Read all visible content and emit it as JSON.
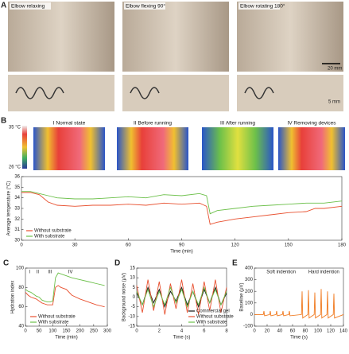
{
  "panels": {
    "a": {
      "label": "A",
      "photos": [
        "Elbow relaxing",
        "Elbow flexing 90°",
        "Elbow rotating 180°"
      ],
      "scale_bars": [
        "20 mm",
        "5 mm"
      ]
    },
    "b": {
      "label": "B",
      "thermal": [
        "I Normal state",
        "II Before running",
        "III After running",
        "IV Removing devices"
      ],
      "colorbar": [
        "35 °C",
        "26 °C"
      ]
    }
  },
  "chart_data": [
    {
      "type": "line",
      "xlabel": "Time (min)",
      "ylabel": "Average temperature (°C)",
      "x": [
        0,
        5,
        10,
        15,
        20,
        30,
        40,
        50,
        60,
        70,
        80,
        90,
        100,
        104,
        106,
        110,
        120,
        130,
        140,
        150,
        160,
        165,
        170,
        180
      ],
      "series": [
        {
          "name": "Without substrate",
          "color": "#e8502f",
          "values": [
            34.5,
            34.5,
            34.3,
            33.6,
            33.3,
            33.2,
            33.3,
            33.3,
            33.4,
            33.3,
            33.5,
            33.4,
            33.5,
            33.2,
            31.5,
            31.7,
            32.0,
            32.2,
            32.4,
            32.6,
            32.7,
            33.0,
            33.0,
            33.2
          ]
        },
        {
          "name": "With substrate",
          "color": "#6cc04a",
          "values": [
            34.6,
            34.6,
            34.4,
            34.2,
            34.0,
            33.9,
            33.9,
            34.0,
            34.1,
            34.0,
            34.3,
            34.2,
            34.4,
            34.2,
            32.5,
            32.8,
            33.0,
            33.2,
            33.3,
            33.4,
            33.5,
            33.5,
            33.5,
            33.7
          ]
        }
      ],
      "xlim": [
        0,
        180
      ],
      "ylim": [
        30,
        36
      ],
      "xticks": [
        0,
        30,
        60,
        90,
        120,
        150,
        180
      ],
      "yticks": [
        30,
        31,
        32,
        33,
        34,
        35,
        36
      ],
      "legend": "lower left"
    },
    {
      "type": "line",
      "panel_label": "C",
      "xlabel": "Time (min)",
      "ylabel": "Hydration index",
      "x": [
        0,
        10,
        20,
        30,
        40,
        50,
        60,
        70,
        80,
        90,
        100,
        110,
        120,
        130,
        150,
        170,
        200,
        230,
        260,
        290
      ],
      "series": [
        {
          "name": "Without substrate",
          "color": "#e8502f",
          "values": [
            75,
            72,
            70,
            69,
            68,
            66,
            64,
            63,
            62,
            62,
            62,
            80,
            82,
            80,
            78,
            72,
            68,
            65,
            62,
            60
          ]
        },
        {
          "name": "With substrate",
          "color": "#6cc04a",
          "values": [
            78,
            76,
            75,
            73,
            71,
            70,
            67,
            66,
            65,
            65,
            66,
            90,
            95,
            94,
            92,
            90,
            88,
            86,
            84,
            82
          ]
        }
      ],
      "annotations": [
        "I",
        "II",
        "III",
        "IV"
      ],
      "xlim": [
        0,
        300
      ],
      "ylim": [
        40,
        100
      ],
      "xticks": [
        0,
        50,
        100,
        150,
        200,
        250,
        300
      ],
      "yticks": [
        40,
        60,
        80,
        100
      ],
      "legend": "lower left"
    },
    {
      "type": "line",
      "panel_label": "D",
      "xlabel": "Time (s)",
      "ylabel": "Background noise (μV)",
      "x": [
        0,
        0.5,
        1,
        1.5,
        2,
        2.5,
        3,
        3.5,
        4,
        4.5,
        5,
        5.5,
        6,
        6.5,
        7,
        7.5,
        8
      ],
      "series": [
        {
          "name": "Commercial gel",
          "color": "#111111",
          "values": [
            2,
            -4,
            5,
            -3,
            4,
            -5,
            3,
            -2,
            5,
            -4,
            3,
            -5,
            4,
            -3,
            5,
            -4,
            2
          ]
        },
        {
          "name": "Without substrate",
          "color": "#e8502f",
          "values": [
            6,
            -8,
            9,
            -7,
            8,
            -9,
            7,
            -6,
            9,
            -8,
            7,
            -9,
            8,
            -7,
            9,
            -8,
            5
          ]
        },
        {
          "name": "With substrate",
          "color": "#6cc04a",
          "values": [
            3,
            -4,
            4,
            -5,
            3,
            -4,
            5,
            -3,
            4,
            -5,
            3,
            -4,
            5,
            -3,
            4,
            -4,
            3
          ]
        }
      ],
      "xlim": [
        0,
        8
      ],
      "ylim": [
        -15,
        15
      ],
      "xticks": [
        0,
        2,
        4,
        6,
        8
      ],
      "yticks": [
        -15,
        -10,
        -5,
        0,
        5,
        10,
        15
      ],
      "legend": "lower right"
    },
    {
      "type": "line",
      "panel_label": "E",
      "xlabel": "Time (s)",
      "ylabel": "Baseline (μV)",
      "x": [
        0,
        14,
        15,
        16,
        24,
        25,
        26,
        34,
        35,
        36,
        44,
        45,
        46,
        54,
        55,
        56,
        74,
        75,
        76,
        84,
        85,
        86,
        94,
        95,
        96,
        104,
        105,
        106,
        114,
        115,
        116,
        124,
        125,
        126,
        140
      ],
      "values": [
        0,
        0,
        30,
        -10,
        0,
        30,
        -10,
        0,
        30,
        -10,
        0,
        30,
        -10,
        0,
        30,
        -10,
        0,
        200,
        -30,
        0,
        210,
        -30,
        0,
        190,
        -30,
        0,
        220,
        -30,
        0,
        200,
        -30,
        0,
        180,
        -30,
        0
      ],
      "color": "#f07a20",
      "annotations": [
        "Soft indention",
        "Hard indention"
      ],
      "xlim": [
        0,
        140
      ],
      "ylim": [
        -100,
        400
      ],
      "xticks": [
        0,
        20,
        40,
        60,
        80,
        100,
        120,
        140
      ],
      "yticks": [
        -100,
        0,
        100,
        200,
        300,
        400
      ]
    }
  ]
}
